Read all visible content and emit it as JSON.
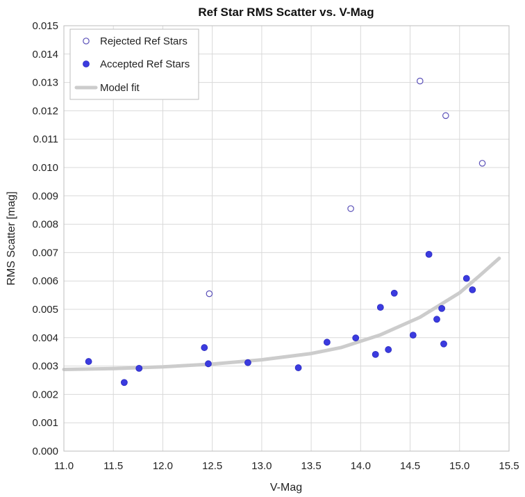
{
  "chart_data": {
    "type": "scatter",
    "title": "Ref Star RMS Scatter vs. V-Mag",
    "xlabel": "V-Mag",
    "ylabel": "RMS Scatter [mag]",
    "xlim": [
      11.0,
      15.5
    ],
    "ylim": [
      0.0,
      0.015
    ],
    "x_ticks": [
      "11.0",
      "11.5",
      "12.0",
      "12.5",
      "13.0",
      "13.5",
      "14.0",
      "14.5",
      "15.0",
      "15.5"
    ],
    "y_ticks": [
      "0.000",
      "0.001",
      "0.002",
      "0.003",
      "0.004",
      "0.005",
      "0.006",
      "0.007",
      "0.008",
      "0.009",
      "0.010",
      "0.011",
      "0.012",
      "0.013",
      "0.014",
      "0.015"
    ],
    "grid": true,
    "legend_position": "top-left",
    "colors": {
      "points": "#3b3bdf",
      "rejected": "#5a50b8",
      "model": "#cccccc"
    },
    "series": [
      {
        "name": "Rejected Ref Stars",
        "marker": "open-circle",
        "points": [
          [
            12.47,
            0.00555
          ],
          [
            13.9,
            0.00855
          ],
          [
            14.6,
            0.01305
          ],
          [
            14.86,
            0.01183
          ],
          [
            15.23,
            0.01015
          ]
        ]
      },
      {
        "name": "Accepted Ref Stars",
        "marker": "filled-circle",
        "points": [
          [
            11.25,
            0.00316
          ],
          [
            11.61,
            0.00242
          ],
          [
            11.76,
            0.00292
          ],
          [
            12.42,
            0.00365
          ],
          [
            12.46,
            0.00308
          ],
          [
            12.86,
            0.00312
          ],
          [
            13.37,
            0.00294
          ],
          [
            13.66,
            0.00384
          ],
          [
            13.95,
            0.00399
          ],
          [
            14.15,
            0.00341
          ],
          [
            14.2,
            0.00507
          ],
          [
            14.28,
            0.00358
          ],
          [
            14.34,
            0.00557
          ],
          [
            14.53,
            0.00409
          ],
          [
            14.69,
            0.00694
          ],
          [
            14.77,
            0.00465
          ],
          [
            14.82,
            0.00503
          ],
          [
            14.84,
            0.00378
          ],
          [
            15.07,
            0.00609
          ],
          [
            15.13,
            0.00569
          ]
        ]
      },
      {
        "name": "Model fit",
        "marker": "line",
        "points": [
          [
            11.0,
            0.00288
          ],
          [
            11.5,
            0.00291
          ],
          [
            12.0,
            0.00297
          ],
          [
            12.5,
            0.00307
          ],
          [
            13.0,
            0.00322
          ],
          [
            13.5,
            0.00344
          ],
          [
            13.8,
            0.00365
          ],
          [
            14.2,
            0.0041
          ],
          [
            14.6,
            0.00472
          ],
          [
            15.0,
            0.00558
          ],
          [
            15.2,
            0.00618
          ],
          [
            15.4,
            0.0068
          ]
        ]
      }
    ]
  }
}
